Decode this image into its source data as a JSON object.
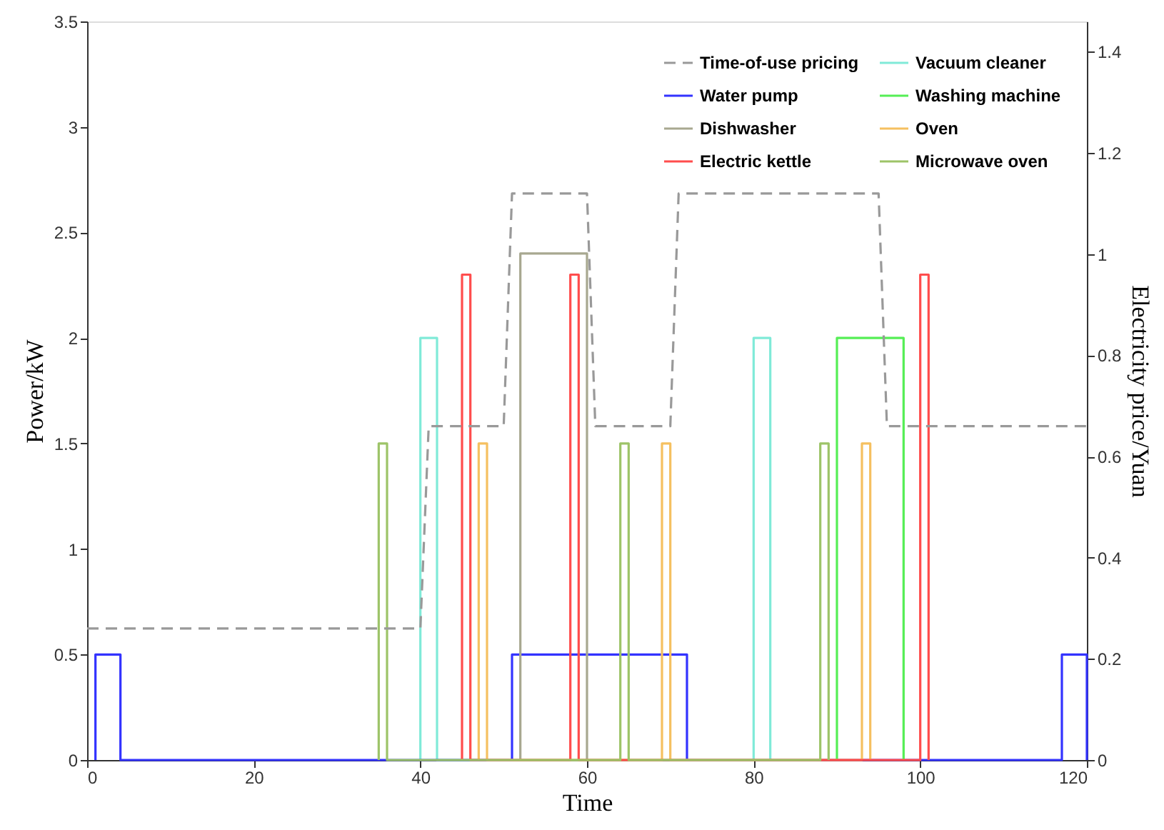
{
  "chart_data": {
    "type": "line",
    "xlabel": "Time",
    "ylabel": "Power/kW",
    "y2label": "Electricity price/Yuan",
    "xlim": [
      0,
      120
    ],
    "xticks": [
      0,
      20,
      40,
      60,
      80,
      100,
      120
    ],
    "ylim": [
      0,
      3.5
    ],
    "yticks": [
      0,
      0.5,
      1,
      1.5,
      2,
      2.5,
      3,
      3.5
    ],
    "y2lim": [
      0,
      1.46
    ],
    "y2ticks": [
      0,
      0.2,
      0.4,
      0.6,
      0.8,
      1,
      1.2,
      1.4
    ],
    "grid": false,
    "legend": "top right",
    "series": [
      {
        "name": "Time-of-use pricing",
        "color": "#999999",
        "axis": "y2",
        "line_style": "dashed",
        "x": [
          0,
          40,
          41,
          50,
          51,
          60,
          61,
          70,
          71,
          95,
          96,
          120
        ],
        "values": [
          0.26,
          0.26,
          0.66,
          0.66,
          1.12,
          1.12,
          0.66,
          0.66,
          1.12,
          1.12,
          0.66,
          0.66
        ]
      },
      {
        "name": "Vacuum cleaner",
        "color": "#80ead8",
        "x": [
          40,
          40,
          42,
          42,
          80,
          80,
          82,
          82
        ],
        "values": [
          0,
          2,
          2,
          0,
          0,
          2,
          2,
          0
        ]
      },
      {
        "name": "Water pump",
        "color": "#3333ff",
        "x": [
          1,
          1,
          4,
          4,
          51,
          51,
          72,
          72,
          117,
          117,
          120,
          120
        ],
        "values": [
          0,
          0.5,
          0.5,
          0,
          0,
          0.5,
          0.5,
          0,
          0,
          0.5,
          0.5,
          0
        ]
      },
      {
        "name": "Washing machine",
        "color": "#55ee55",
        "x": [
          90,
          90,
          98,
          98
        ],
        "values": [
          0,
          2,
          2,
          0
        ]
      },
      {
        "name": "Dishwasher",
        "color": "#a8a890",
        "x": [
          52,
          52,
          60,
          60
        ],
        "values": [
          0,
          2.4,
          2.4,
          0
        ]
      },
      {
        "name": "Oven",
        "color": "#f5c060",
        "x": [
          47,
          47,
          48,
          48,
          69,
          69,
          70,
          70,
          93,
          93,
          94,
          94
        ],
        "values": [
          0,
          1.5,
          1.5,
          0,
          0,
          1.5,
          1.5,
          0,
          0,
          1.5,
          1.5,
          0
        ]
      },
      {
        "name": "Electric kettle",
        "color": "#ff4d4d",
        "x": [
          45,
          45,
          46,
          46,
          58,
          58,
          59,
          59,
          100,
          100,
          101,
          101
        ],
        "values": [
          0,
          2.3,
          2.3,
          0,
          0,
          2.3,
          2.3,
          0,
          0,
          2.3,
          2.3,
          0
        ]
      },
      {
        "name": "Microwave oven",
        "color": "#9dc468",
        "x": [
          35,
          35,
          36,
          36,
          64,
          64,
          65,
          65,
          88,
          88,
          89,
          89
        ],
        "values": [
          0,
          1.5,
          1.5,
          0,
          0,
          1.5,
          1.5,
          0,
          0,
          1.5,
          1.5,
          0
        ]
      }
    ]
  }
}
